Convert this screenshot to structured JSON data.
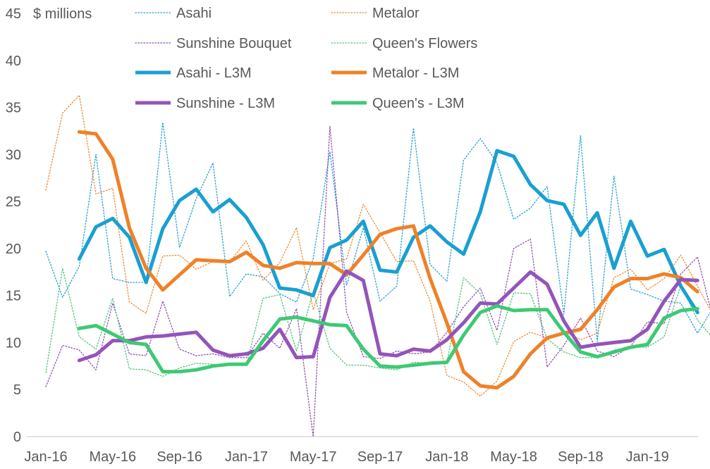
{
  "chart_data": {
    "type": "line",
    "ylabel": "$ millions",
    "ylim": [
      0,
      45
    ],
    "yticks": [
      "0",
      "5",
      "10",
      "15",
      "20",
      "25",
      "30",
      "35",
      "40",
      "45"
    ],
    "xtick_labels": [
      "Jan-16",
      "May-16",
      "Sep-16",
      "Jan-17",
      "May-17",
      "Sep-17",
      "Jan-18",
      "May-18",
      "Sep-18",
      "Jan-19"
    ],
    "x": [
      "Jan-16",
      "Feb-16",
      "Mar-16",
      "Apr-16",
      "May-16",
      "Jun-16",
      "Jul-16",
      "Aug-16",
      "Sep-16",
      "Oct-16",
      "Nov-16",
      "Dec-16",
      "Jan-17",
      "Feb-17",
      "Mar-17",
      "Apr-17",
      "May-17",
      "Jun-17",
      "Jul-17",
      "Aug-17",
      "Sep-17",
      "Oct-17",
      "Nov-17",
      "Dec-17",
      "Jan-18",
      "Feb-18",
      "Mar-18",
      "Apr-18",
      "May-18",
      "Jun-18",
      "Jul-18",
      "Aug-18",
      "Sep-18",
      "Oct-18",
      "Nov-18",
      "Dec-18",
      "Jan-19",
      "Feb-19",
      "Mar-19",
      "Apr-19",
      "May-19"
    ],
    "legend_position": "top",
    "series": [
      {
        "name": "Asahi",
        "style": "dotted",
        "color": "#20a1cf",
        "values": [
          19.7,
          14.8,
          18.1,
          30.0,
          16.8,
          16.4,
          16.4,
          33.4,
          20.1,
          25.3,
          29.1,
          14.9,
          17.3,
          17.0,
          15.2,
          14.3,
          18.9,
          30.3,
          16.1,
          22.2,
          14.4,
          16.0,
          32.8,
          18.3,
          16.5,
          29.4,
          31.7,
          29.1,
          23.1,
          24.3,
          26.6,
          13.0,
          32.0,
          10.1,
          27.7,
          15.7,
          15.1,
          14.4,
          14.2,
          11.0,
          13.9
        ]
      },
      {
        "name": "Metalor",
        "style": "dotted",
        "color": "#ec8a2f",
        "values": [
          26.2,
          34.4,
          36.3,
          25.8,
          26.4,
          14.3,
          13.1,
          19.2,
          19.3,
          17.8,
          18.6,
          18.6,
          20.8,
          16.6,
          18.5,
          22.2,
          13.5,
          18.4,
          18.9,
          24.7,
          21.7,
          18.6,
          18.7,
          14.4,
          6.5,
          5.8,
          4.3,
          5.9,
          10.1,
          11.1,
          10.5,
          11.2,
          10.3,
          11.0,
          16.9,
          17.8,
          15.6,
          16.8,
          19.3,
          16.0,
          12.7
        ]
      },
      {
        "name": "Sunshine Bouquet",
        "style": "dotted",
        "color": "#8e4cb3",
        "values": [
          5.3,
          9.7,
          9.2,
          7.1,
          14.2,
          8.8,
          8.6,
          14.4,
          9.3,
          8.6,
          8.8,
          8.4,
          8.4,
          11.0,
          9.4,
          13.6,
          0.0,
          33.0,
          13.2,
          8.5,
          8.3,
          9.1,
          8.8,
          9.0,
          11.1,
          13.8,
          15.8,
          11.3,
          20.0,
          21.0,
          7.4,
          9.7,
          12.6,
          9.1,
          8.5,
          9.6,
          12.2,
          12.0,
          17.3,
          19.1,
          12.0
        ]
      },
      {
        "name": "Queen's Flowers",
        "style": "dotted",
        "color": "#4fc27a",
        "values": [
          6.8,
          17.9,
          10.6,
          9.3,
          14.7,
          7.2,
          7.1,
          6.4,
          7.3,
          7.8,
          7.7,
          7.6,
          7.6,
          14.7,
          15.1,
          9.1,
          15.4,
          9.4,
          7.6,
          7.6,
          7.3,
          7.1,
          7.9,
          7.8,
          7.9,
          16.9,
          15.2,
          9.8,
          15.3,
          15.2,
          10.4,
          9.0,
          8.4,
          8.4,
          9.2,
          9.5,
          9.5,
          10.6,
          16.1,
          12.4,
          10.3
        ]
      },
      {
        "name": "Asahi - L3M",
        "style": "solid",
        "color": "#1a9fd1",
        "values": [
          null,
          null,
          18.9,
          22.3,
          23.2,
          21.2,
          16.4,
          22.1,
          25.1,
          26.3,
          23.9,
          25.2,
          23.3,
          20.4,
          15.8,
          15.6,
          15.0,
          20.1,
          20.9,
          22.9,
          17.7,
          17.5,
          21.2,
          22.4,
          20.7,
          19.4,
          23.9,
          30.4,
          29.8,
          26.8,
          25.1,
          24.7,
          21.4,
          23.8,
          17.9,
          22.9,
          19.2,
          19.9,
          16.0,
          13.2,
          null
        ]
      },
      {
        "name": "Metalor - L3M",
        "style": "solid",
        "color": "#ef8128",
        "values": [
          null,
          null,
          32.4,
          32.2,
          29.5,
          22.2,
          17.9,
          15.6,
          17.2,
          18.8,
          18.7,
          18.6,
          19.6,
          18.2,
          17.9,
          18.5,
          18.4,
          18.4,
          17.2,
          19.3,
          21.5,
          22.1,
          22.4,
          16.8,
          12.1,
          6.9,
          5.4,
          5.2,
          6.4,
          8.8,
          10.5,
          11.0,
          11.4,
          13.5,
          15.9,
          16.8,
          16.8,
          17.3,
          16.9,
          15.4,
          null
        ]
      },
      {
        "name": "Sunshine - L3M",
        "style": "solid",
        "color": "#9454b9",
        "values": [
          null,
          null,
          8.1,
          8.7,
          10.2,
          10.2,
          10.6,
          10.7,
          10.9,
          11.1,
          9.2,
          8.6,
          8.8,
          9.4,
          11.4,
          8.4,
          8.5,
          14.8,
          17.6,
          16.6,
          8.8,
          8.6,
          9.3,
          9.1,
          10.3,
          12.1,
          14.2,
          14.1,
          15.8,
          17.5,
          16.2,
          12.3,
          9.5,
          9.8,
          10.0,
          10.2,
          11.4,
          14.4,
          16.7,
          16.6,
          null
        ]
      },
      {
        "name": "Queen's - L3M",
        "style": "solid",
        "color": "#3ec974",
        "values": [
          null,
          null,
          11.5,
          11.8,
          10.9,
          10.0,
          9.8,
          6.9,
          6.9,
          7.1,
          7.5,
          7.7,
          7.7,
          10.2,
          12.5,
          12.7,
          12.3,
          11.9,
          11.8,
          9.3,
          7.5,
          7.4,
          7.6,
          7.8,
          7.9,
          10.8,
          13.2,
          13.9,
          13.4,
          13.5,
          13.5,
          11.1,
          9.0,
          8.5,
          9.0,
          9.5,
          9.8,
          12.6,
          13.4,
          13.6,
          null
        ]
      }
    ]
  }
}
